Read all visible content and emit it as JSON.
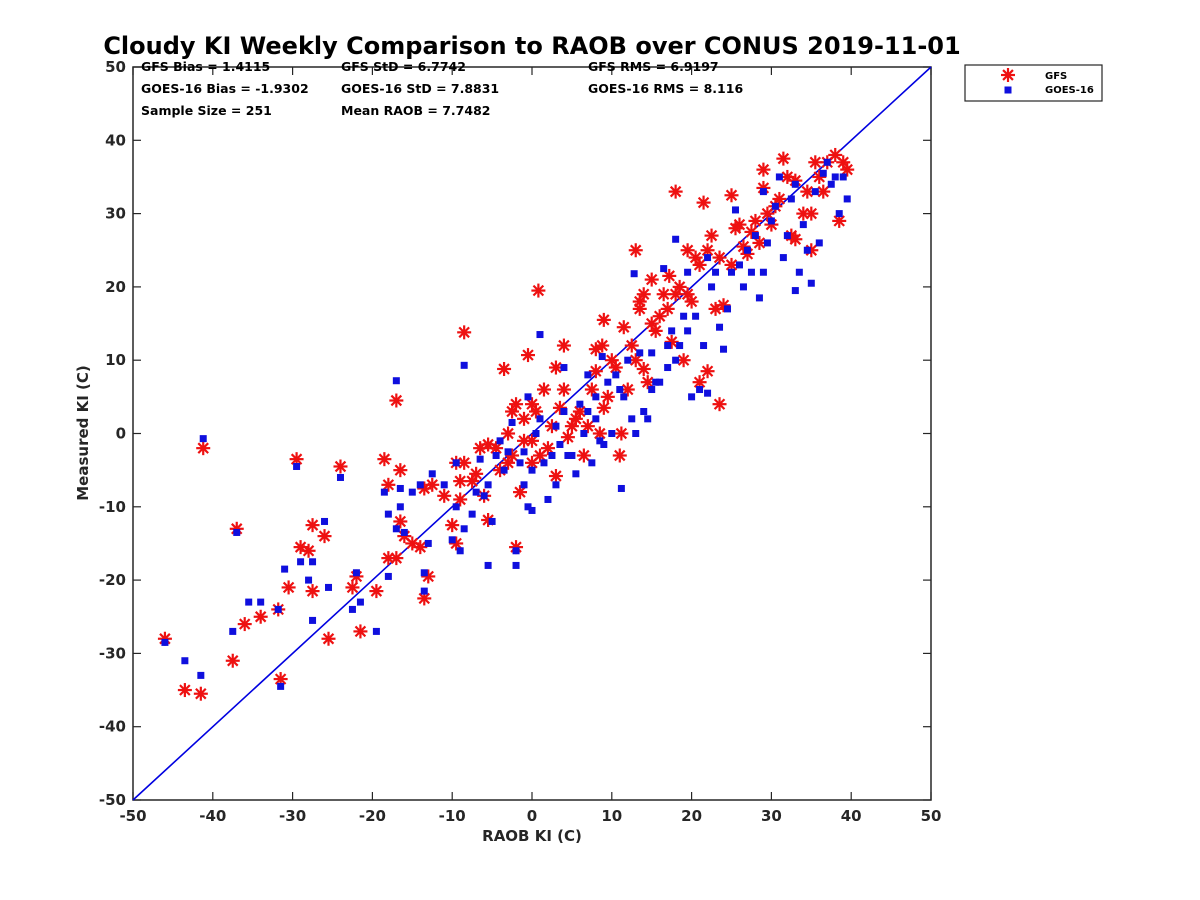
{
  "chart_data": {
    "type": "scatter",
    "title": "Cloudy KI Weekly Comparison to RAOB over CONUS 2019-11-01",
    "xlabel": "RAOB KI (C)",
    "ylabel": "Measured KI (C)",
    "xlim": [
      -50,
      50
    ],
    "ylim": [
      -50,
      50
    ],
    "xticks": [
      "-50",
      "-40",
      "-30",
      "-20",
      "-10",
      "0",
      "10",
      "20",
      "30",
      "40",
      "50"
    ],
    "yticks": [
      "50",
      "40",
      "30",
      "20",
      "10",
      "0",
      "-10",
      "-20",
      "-30",
      "-40",
      "-50"
    ],
    "grid": false,
    "legend_position": "top-right",
    "reference_line": "y = x",
    "reference_line_color": "#0000e0",
    "stats": [
      "GFS Bias = 1.4115",
      "GFS StD = 6.7742",
      "GFS RMS = 6.9197",
      "GOES-16 Bias = -1.9302",
      "GOES-16 StD = 7.8831",
      "GOES-16 RMS = 8.116",
      "Sample Size = 251",
      "Mean RAOB = 7.7482"
    ],
    "series": [
      {
        "name": "GFS",
        "marker": "asterisk",
        "color": "#ee1111",
        "points": [
          [
            -46,
            -28
          ],
          [
            -43.5,
            -35
          ],
          [
            -41.5,
            -35.5
          ],
          [
            -41.2,
            -2
          ],
          [
            -37.5,
            -31
          ],
          [
            -37,
            -13
          ],
          [
            -36,
            -26
          ],
          [
            -34,
            -25
          ],
          [
            -31.5,
            -33.5
          ],
          [
            -31.8,
            -24
          ],
          [
            -30.5,
            -21
          ],
          [
            -29.5,
            -3.5
          ],
          [
            -29,
            -15.5
          ],
          [
            -28,
            -16
          ],
          [
            -27.5,
            -12.5
          ],
          [
            -27.5,
            -21.5
          ],
          [
            -26,
            -14
          ],
          [
            -25.5,
            -28
          ],
          [
            -24,
            -4.5
          ],
          [
            -22.5,
            -21
          ],
          [
            -22,
            -19.5
          ],
          [
            -21.5,
            -27
          ],
          [
            -19.5,
            -21.5
          ],
          [
            -18.5,
            -3.5
          ],
          [
            -18,
            -7
          ],
          [
            -18,
            -17
          ],
          [
            -17,
            -17
          ],
          [
            -17,
            4.5
          ],
          [
            -16.5,
            -5
          ],
          [
            -16.5,
            -12
          ],
          [
            -16,
            -14
          ],
          [
            -15,
            -15
          ],
          [
            -14,
            -15.5
          ],
          [
            -13.5,
            -22.5
          ],
          [
            -13.5,
            -7.5
          ],
          [
            -13,
            -19.5
          ],
          [
            -12.5,
            -7
          ],
          [
            -11,
            -8.5
          ],
          [
            -10,
            -12.5
          ],
          [
            -9.5,
            -4
          ],
          [
            -9.5,
            -15
          ],
          [
            -9,
            -9
          ],
          [
            -9,
            -6.5
          ],
          [
            -8.5,
            13.8
          ],
          [
            -8.5,
            -4
          ],
          [
            -7.5,
            -6.5
          ],
          [
            -7,
            -5.5
          ],
          [
            -6.5,
            -2
          ],
          [
            -6,
            -8.5
          ],
          [
            -5.5,
            -1.5
          ],
          [
            -5.5,
            -11.8
          ],
          [
            -4.5,
            -2
          ],
          [
            -4,
            -5
          ],
          [
            -3.5,
            8.8
          ],
          [
            -3,
            0
          ],
          [
            -3,
            -4
          ],
          [
            -2.5,
            3
          ],
          [
            -2.5,
            -3
          ],
          [
            -2,
            -15.5
          ],
          [
            -2,
            4
          ],
          [
            -1.5,
            -8
          ],
          [
            -1,
            2
          ],
          [
            -1,
            -1
          ],
          [
            -0.5,
            10.7
          ],
          [
            0,
            -1
          ],
          [
            0,
            -4
          ],
          [
            0,
            4
          ],
          [
            0.5,
            3
          ],
          [
            1,
            -3
          ],
          [
            0.8,
            19.5
          ],
          [
            1.5,
            6
          ],
          [
            2,
            -2
          ],
          [
            2.5,
            1
          ],
          [
            3,
            -5.8
          ],
          [
            3,
            9
          ],
          [
            3.5,
            3.5
          ],
          [
            4,
            12
          ],
          [
            4,
            6
          ],
          [
            4.5,
            -0.5
          ],
          [
            5,
            1
          ],
          [
            5.5,
            2
          ],
          [
            6,
            3
          ],
          [
            6.5,
            -3
          ],
          [
            7,
            1
          ],
          [
            7.5,
            6
          ],
          [
            8,
            8.5
          ],
          [
            8,
            11.5
          ],
          [
            8.5,
            0
          ],
          [
            8.8,
            12
          ],
          [
            9,
            15.5
          ],
          [
            9,
            3.5
          ],
          [
            9.5,
            5
          ],
          [
            10,
            10
          ],
          [
            10.5,
            9
          ],
          [
            11,
            -3
          ],
          [
            11.2,
            0
          ],
          [
            11.5,
            14.5
          ],
          [
            12,
            6
          ],
          [
            12.5,
            12
          ],
          [
            13,
            25
          ],
          [
            13,
            10
          ],
          [
            13.5,
            17
          ],
          [
            13.5,
            18
          ],
          [
            14,
            19
          ],
          [
            14,
            8.8
          ],
          [
            14.5,
            7
          ],
          [
            15,
            15
          ],
          [
            15,
            21
          ],
          [
            15.5,
            14
          ],
          [
            16,
            16
          ],
          [
            16.5,
            19
          ],
          [
            17,
            17
          ],
          [
            17.2,
            21.5
          ],
          [
            17.5,
            12.5
          ],
          [
            18,
            33
          ],
          [
            18,
            19
          ],
          [
            18.5,
            20
          ],
          [
            19,
            10
          ],
          [
            19.5,
            25
          ],
          [
            19.5,
            19
          ],
          [
            20,
            18
          ],
          [
            20.5,
            24
          ],
          [
            21,
            23
          ],
          [
            21,
            7
          ],
          [
            21.5,
            31.5
          ],
          [
            22,
            25
          ],
          [
            22,
            8.5
          ],
          [
            22.5,
            27
          ],
          [
            23,
            17
          ],
          [
            23.5,
            24
          ],
          [
            23.5,
            4
          ],
          [
            24,
            17.5
          ],
          [
            25,
            23
          ],
          [
            25,
            32.5
          ],
          [
            25.5,
            28
          ],
          [
            26,
            28.5
          ],
          [
            26.5,
            25.5
          ],
          [
            27,
            24.5
          ],
          [
            27.5,
            27.5
          ],
          [
            28,
            29
          ],
          [
            28.5,
            26
          ],
          [
            29,
            36
          ],
          [
            29,
            33.5
          ],
          [
            29.5,
            30
          ],
          [
            30,
            28.5
          ],
          [
            30.5,
            31
          ],
          [
            31,
            32
          ],
          [
            31.5,
            37.5
          ],
          [
            32,
            35
          ],
          [
            32.5,
            27
          ],
          [
            33,
            26.5
          ],
          [
            33,
            34.5
          ],
          [
            34,
            30
          ],
          [
            34.5,
            33
          ],
          [
            35,
            25
          ],
          [
            35,
            30
          ],
          [
            35.5,
            37
          ],
          [
            36,
            35
          ],
          [
            36.5,
            33
          ],
          [
            37,
            37
          ],
          [
            38,
            38
          ],
          [
            38.5,
            29
          ],
          [
            39,
            37
          ],
          [
            39.5,
            36
          ]
        ]
      },
      {
        "name": "GOES-16",
        "marker": "square",
        "color": "#0f0fde",
        "points": [
          [
            -46,
            -28.5
          ],
          [
            -43.5,
            -31
          ],
          [
            -41.5,
            -33
          ],
          [
            -41.2,
            -0.7
          ],
          [
            -37.5,
            -27
          ],
          [
            -37,
            -13.5
          ],
          [
            -35.5,
            -23
          ],
          [
            -34,
            -23
          ],
          [
            -31.8,
            -24
          ],
          [
            -31.5,
            -34.5
          ],
          [
            -31,
            -18.5
          ],
          [
            -29.5,
            -4.5
          ],
          [
            -29,
            -17.5
          ],
          [
            -28,
            -20
          ],
          [
            -27.5,
            -25.5
          ],
          [
            -27.5,
            -17.5
          ],
          [
            -26,
            -12
          ],
          [
            -25.5,
            -21
          ],
          [
            -24,
            -6
          ],
          [
            -22.5,
            -24
          ],
          [
            -22,
            -19
          ],
          [
            -21.5,
            -23
          ],
          [
            -19.5,
            -27
          ],
          [
            -18.5,
            -8
          ],
          [
            -18,
            -11
          ],
          [
            -18,
            -19.5
          ],
          [
            -17,
            -13
          ],
          [
            -17,
            7.2
          ],
          [
            -16.5,
            -7.5
          ],
          [
            -16.5,
            -10
          ],
          [
            -16,
            -13.5
          ],
          [
            -15,
            -8
          ],
          [
            -14,
            -7
          ],
          [
            -13.5,
            -19
          ],
          [
            -13.5,
            -21.5
          ],
          [
            -13,
            -15
          ],
          [
            -12.5,
            -5.5
          ],
          [
            -11,
            -7
          ],
          [
            -10,
            -14.5
          ],
          [
            -9.5,
            -4
          ],
          [
            -9.5,
            -10
          ],
          [
            -9,
            -16
          ],
          [
            -8.5,
            9.3
          ],
          [
            -8.5,
            -13
          ],
          [
            -7.5,
            -11
          ],
          [
            -7,
            -8
          ],
          [
            -6.5,
            -3.5
          ],
          [
            -6,
            -8.5
          ],
          [
            -5.5,
            -18
          ],
          [
            -5.5,
            -7
          ],
          [
            -5,
            -12
          ],
          [
            -4.5,
            -3
          ],
          [
            -4,
            -1
          ],
          [
            -3.5,
            -5
          ],
          [
            -3,
            -2.5
          ],
          [
            -2.5,
            1.5
          ],
          [
            -2,
            -18
          ],
          [
            -2,
            -16
          ],
          [
            -1.5,
            -4
          ],
          [
            -1,
            -2.5
          ],
          [
            -1,
            -7
          ],
          [
            -0.5,
            -10
          ],
          [
            -0.5,
            5
          ],
          [
            0,
            -10.5
          ],
          [
            0,
            -5
          ],
          [
            0.5,
            0
          ],
          [
            1,
            2
          ],
          [
            1,
            13.5
          ],
          [
            1.5,
            -4
          ],
          [
            2,
            -9
          ],
          [
            2.5,
            -3
          ],
          [
            3,
            -7
          ],
          [
            3,
            1
          ],
          [
            3.5,
            -1.5
          ],
          [
            4,
            9
          ],
          [
            4,
            3
          ],
          [
            4.5,
            -3
          ],
          [
            5,
            -3
          ],
          [
            5.5,
            -5.5
          ],
          [
            6,
            4
          ],
          [
            6.5,
            0
          ],
          [
            7,
            3
          ],
          [
            7,
            8
          ],
          [
            7.5,
            -4
          ],
          [
            8,
            2
          ],
          [
            8,
            5
          ],
          [
            8.5,
            -1
          ],
          [
            8.8,
            10.5
          ],
          [
            9,
            -1.5
          ],
          [
            9.5,
            7
          ],
          [
            10,
            0
          ],
          [
            10.5,
            8
          ],
          [
            11,
            6
          ],
          [
            11.2,
            -7.5
          ],
          [
            11.5,
            5
          ],
          [
            12,
            10
          ],
          [
            12.5,
            2
          ],
          [
            12.8,
            21.8
          ],
          [
            13,
            0
          ],
          [
            13.5,
            11
          ],
          [
            14,
            3
          ],
          [
            14.5,
            2
          ],
          [
            15,
            6
          ],
          [
            15,
            11
          ],
          [
            15.5,
            7
          ],
          [
            16,
            7
          ],
          [
            16.5,
            22.5
          ],
          [
            17,
            12
          ],
          [
            17,
            9
          ],
          [
            17.5,
            14
          ],
          [
            18,
            26.5
          ],
          [
            18,
            10
          ],
          [
            18.5,
            12
          ],
          [
            19,
            16
          ],
          [
            19.5,
            22
          ],
          [
            19.5,
            14
          ],
          [
            20,
            5
          ],
          [
            20.5,
            16
          ],
          [
            21,
            6
          ],
          [
            21.5,
            12
          ],
          [
            22,
            24
          ],
          [
            22,
            5.5
          ],
          [
            22.5,
            20
          ],
          [
            23,
            22
          ],
          [
            23.5,
            14.5
          ],
          [
            24,
            11.5
          ],
          [
            24.5,
            17
          ],
          [
            25,
            22
          ],
          [
            25.5,
            30.5
          ],
          [
            26,
            23
          ],
          [
            26.5,
            20
          ],
          [
            27,
            25
          ],
          [
            27.5,
            22
          ],
          [
            28,
            27
          ],
          [
            28.5,
            18.5
          ],
          [
            29,
            22
          ],
          [
            29,
            33
          ],
          [
            29.5,
            26
          ],
          [
            30,
            29
          ],
          [
            30.5,
            31
          ],
          [
            31,
            35
          ],
          [
            31.5,
            24
          ],
          [
            32,
            27
          ],
          [
            32.5,
            32
          ],
          [
            33,
            19.5
          ],
          [
            33,
            34
          ],
          [
            33.5,
            22
          ],
          [
            34,
            28.5
          ],
          [
            34.5,
            25
          ],
          [
            35,
            20.5
          ],
          [
            35.5,
            33
          ],
          [
            36,
            26
          ],
          [
            36.5,
            35.5
          ],
          [
            37,
            37
          ],
          [
            37.5,
            34
          ],
          [
            38,
            35
          ],
          [
            38.5,
            30
          ],
          [
            39,
            35
          ],
          [
            39.5,
            32
          ]
        ]
      }
    ]
  }
}
